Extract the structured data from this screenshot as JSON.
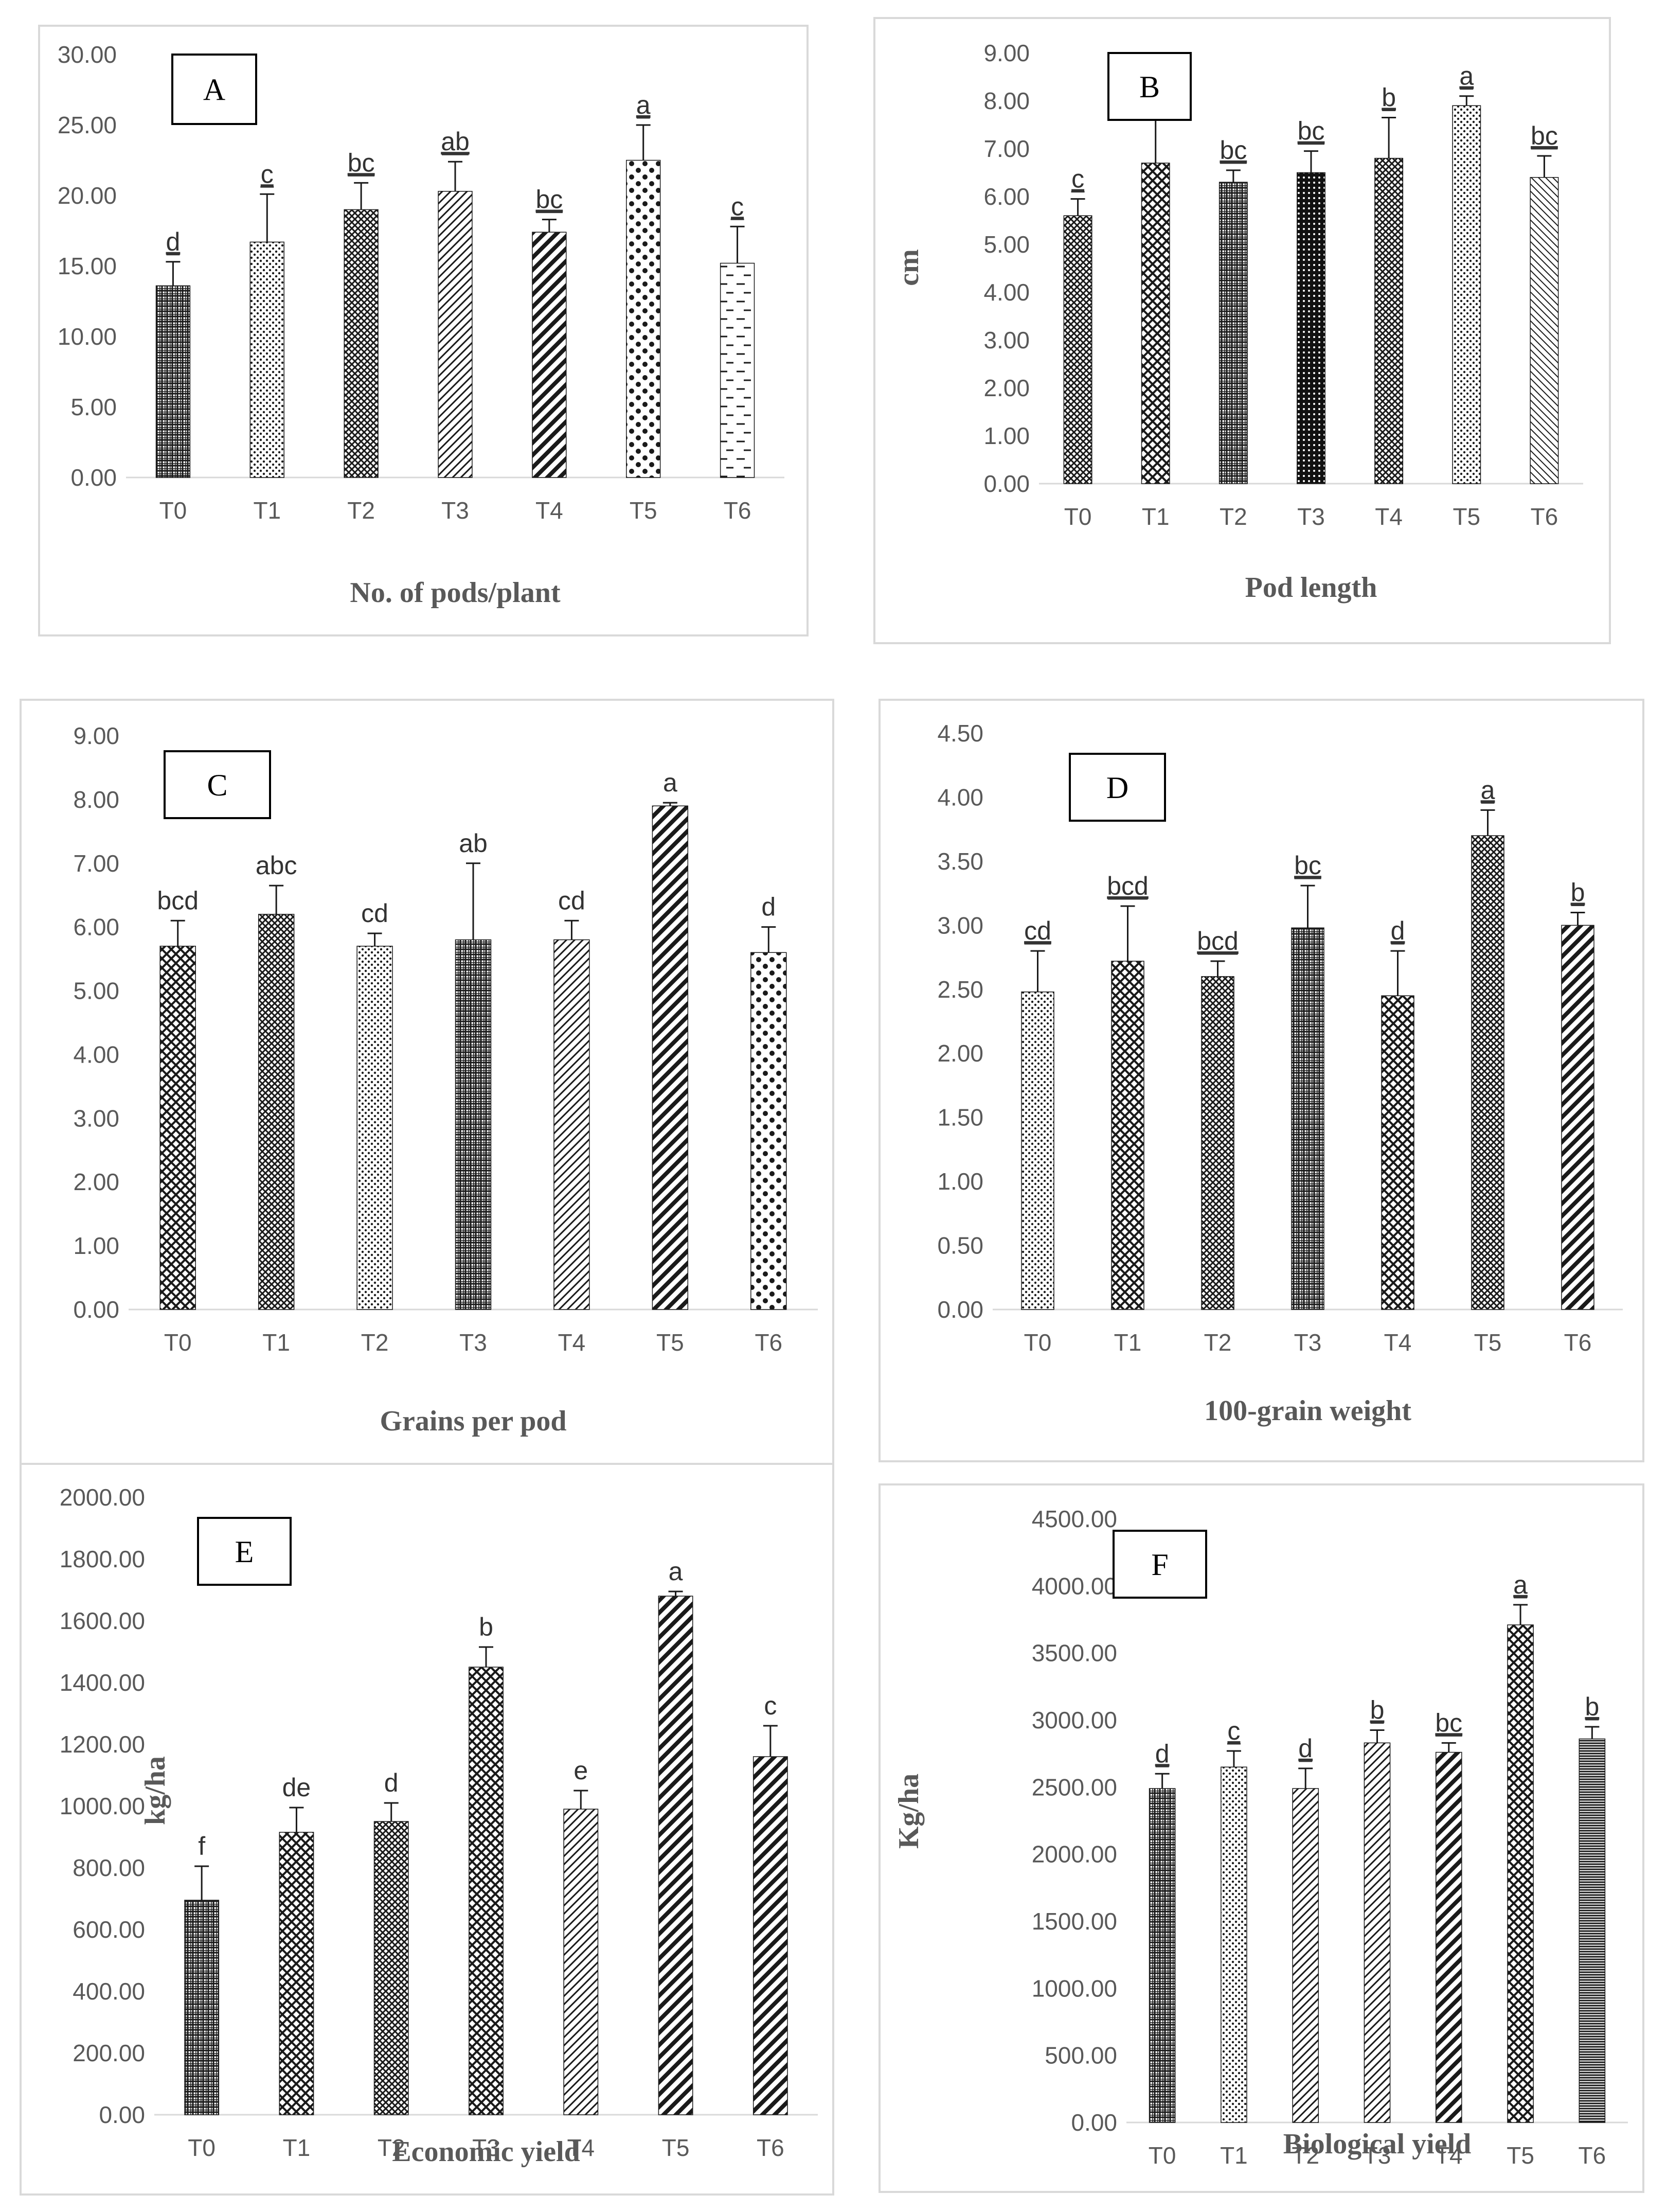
{
  "colors": {
    "bar": "#1a1a1a",
    "frame": "#d9d9d9",
    "grid": "#d9d9d9",
    "text": "#595959",
    "letter_box": "#000000"
  },
  "chart_data": [
    {
      "panel": "A",
      "type": "bar",
      "title": "",
      "xlabel": "No. of pods/plant",
      "ylabel": "",
      "categories": [
        "T0",
        "T1",
        "T2",
        "T3",
        "T4",
        "T5",
        "T6"
      ],
      "values": [
        13.6,
        16.7,
        19.0,
        20.3,
        17.4,
        22.5,
        15.2
      ],
      "errors": [
        1.7,
        3.4,
        1.9,
        2.1,
        0.9,
        2.5,
        2.6
      ],
      "letters": [
        "d",
        "c",
        "bc",
        "ab",
        "bc",
        "a",
        "c"
      ],
      "letters_underlined": true,
      "ylim": [
        0,
        30
      ],
      "yticks": [
        "0.00",
        "5.00",
        "10.00",
        "15.00",
        "20.00",
        "25.00",
        "30.00"
      ],
      "patterns": [
        "grid",
        "dots",
        "crosshatch",
        "diag-right",
        "diag-thick",
        "dots-big",
        "dash"
      ]
    },
    {
      "panel": "B",
      "type": "bar",
      "title": "",
      "xlabel": "Pod length",
      "ylabel": "cm",
      "categories": [
        "T0",
        "T1",
        "T2",
        "T3",
        "T4",
        "T5",
        "T6"
      ],
      "values": [
        5.6,
        6.7,
        6.3,
        6.5,
        6.8,
        7.9,
        6.4
      ],
      "errors": [
        0.35,
        0.9,
        0.25,
        0.45,
        0.85,
        0.2,
        0.45
      ],
      "letters": [
        "c",
        "",
        "bc",
        "bc",
        "b",
        "a",
        "bc"
      ],
      "letters_underlined": true,
      "ylim": [
        0,
        9
      ],
      "yticks": [
        "0.00",
        "1.00",
        "2.00",
        "3.00",
        "4.00",
        "5.00",
        "6.00",
        "7.00",
        "8.00",
        "9.00"
      ],
      "patterns": [
        "crosshatch",
        "bigcheck",
        "grid",
        "dots-dense",
        "crosshatch",
        "dots",
        "diag-left"
      ]
    },
    {
      "panel": "C",
      "type": "bar",
      "title": "",
      "xlabel": "Grains per pod",
      "ylabel": "",
      "categories": [
        "T0",
        "T1",
        "T2",
        "T3",
        "T4",
        "T5",
        "T6"
      ],
      "values": [
        5.7,
        6.2,
        5.7,
        5.8,
        5.8,
        7.9,
        5.6
      ],
      "errors": [
        0.4,
        0.45,
        0.2,
        1.2,
        0.3,
        0.05,
        0.4
      ],
      "letters": [
        "bcd",
        "abc",
        "cd",
        "ab",
        "cd",
        "a",
        "d"
      ],
      "letters_underlined": false,
      "ylim": [
        0,
        9
      ],
      "yticks": [
        "0.00",
        "1.00",
        "2.00",
        "3.00",
        "4.00",
        "5.00",
        "6.00",
        "7.00",
        "8.00",
        "9.00"
      ],
      "patterns": [
        "bigcheck",
        "crosshatch",
        "dots",
        "grid",
        "diag-right",
        "diag-thick",
        "dots-big"
      ]
    },
    {
      "panel": "D",
      "type": "bar",
      "title": "",
      "xlabel": "100-grain weight",
      "ylabel": "",
      "categories": [
        "T0",
        "T1",
        "T2",
        "T3",
        "T4",
        "T5",
        "T6"
      ],
      "values": [
        2.48,
        2.72,
        2.6,
        2.98,
        2.45,
        3.7,
        3.0
      ],
      "errors": [
        0.32,
        0.43,
        0.12,
        0.33,
        0.35,
        0.2,
        0.1
      ],
      "letters": [
        "cd",
        "bcd",
        "bcd",
        "bc",
        "d",
        "a",
        "b"
      ],
      "letters_underlined": true,
      "ylim": [
        0,
        4.5
      ],
      "yticks": [
        "0.00",
        "0.50",
        "1.00",
        "1.50",
        "2.00",
        "2.50",
        "3.00",
        "3.50",
        "4.00",
        "4.50"
      ],
      "patterns": [
        "dots",
        "bigcheck",
        "crosshatch",
        "grid",
        "bigcheck",
        "crosshatch",
        "diag-thick"
      ]
    },
    {
      "panel": "E",
      "type": "bar",
      "title": "",
      "xlabel": "Economic yield",
      "ylabel": "kg/ha",
      "categories": [
        "T0",
        "T1",
        "T2",
        "T3",
        "T4",
        "T5",
        "T6"
      ],
      "values": [
        695,
        915,
        950,
        1450,
        990,
        1680,
        1160
      ],
      "errors": [
        110,
        80,
        60,
        65,
        60,
        15,
        100
      ],
      "letters": [
        "f",
        "de",
        "d",
        "b",
        "e",
        "a",
        "c"
      ],
      "letters_underlined": false,
      "ylim": [
        0,
        2000
      ],
      "yticks": [
        "0.00",
        "200.00",
        "400.00",
        "600.00",
        "800.00",
        "1000.00",
        "1200.00",
        "1400.00",
        "1600.00",
        "1800.00",
        "2000.00"
      ],
      "patterns": [
        "grid",
        "bigcheck",
        "crosshatch",
        "bigcheck",
        "diag-right",
        "diag-thick",
        "diag-thick"
      ]
    },
    {
      "panel": "F",
      "type": "bar",
      "title": "",
      "xlabel": "Biological yield",
      "ylabel": "Kg/ha",
      "categories": [
        "T0",
        "T1",
        "T2",
        "T3",
        "T4",
        "T5",
        "T6"
      ],
      "values": [
        2490,
        2650,
        2490,
        2830,
        2760,
        3710,
        2860
      ],
      "errors": [
        110,
        120,
        150,
        95,
        70,
        150,
        90
      ],
      "letters": [
        "d",
        "c",
        "d",
        "b",
        "bc",
        "a",
        "b"
      ],
      "letters_underlined": true,
      "ylim": [
        0,
        4500
      ],
      "yticks": [
        "0.00",
        "500.00",
        "1000.00",
        "1500.00",
        "2000.00",
        "2500.00",
        "3000.00",
        "3500.00",
        "4000.00",
        "4500.00"
      ],
      "patterns": [
        "grid",
        "dots",
        "diag-right",
        "diag-right",
        "diag-thick",
        "bigcheck",
        "hlines"
      ]
    }
  ]
}
